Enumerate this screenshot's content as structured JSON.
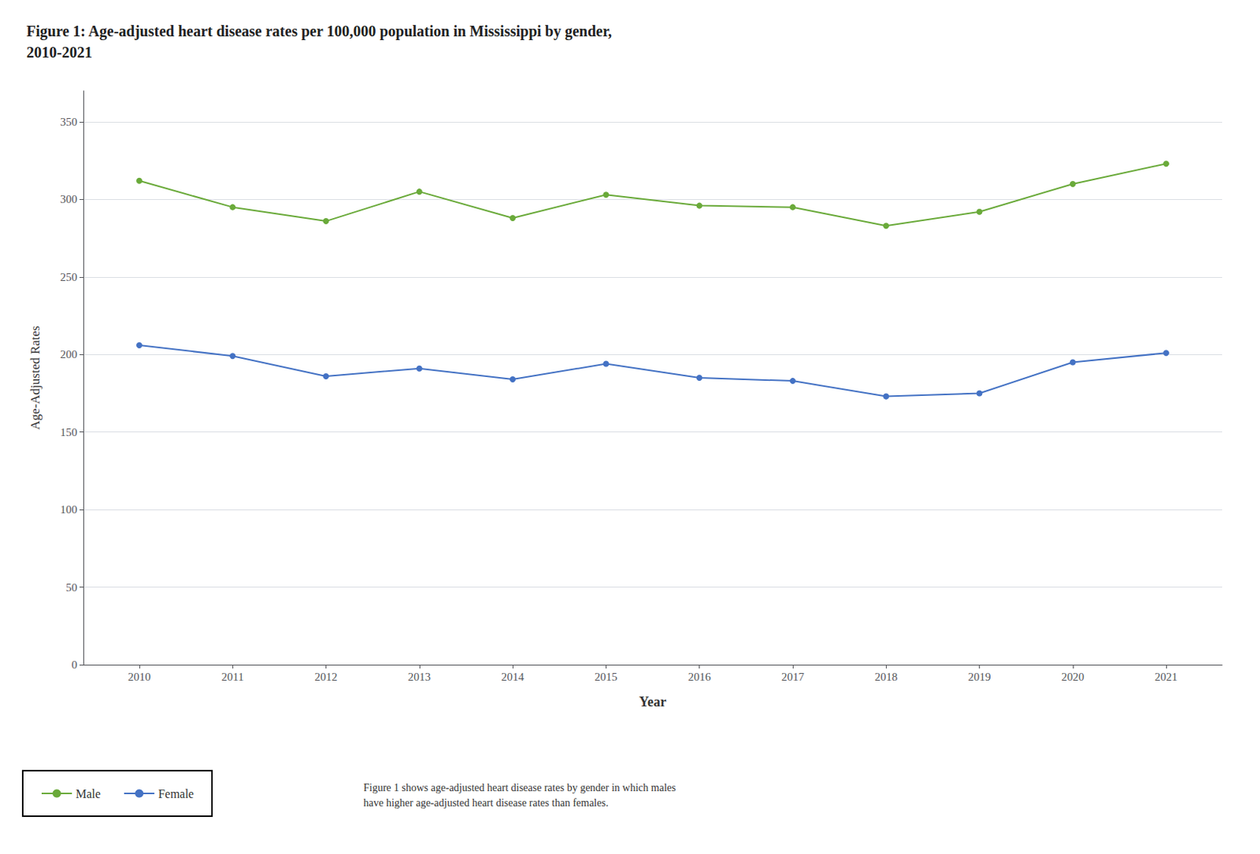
{
  "chart_data": {
    "type": "line",
    "title": "Figure 1: Age-adjusted heart disease rates per 100,000 population in Mississippi by gender,\n2010-2021",
    "x_label": "Year",
    "y_label": "Age-Adjusted Rates",
    "x": [
      2010,
      2011,
      2012,
      2013,
      2014,
      2015,
      2016,
      2017,
      2018,
      2019,
      2020,
      2021
    ],
    "series": [
      {
        "name": "Male",
        "color": "#6aaa3a",
        "values": [
          312,
          295,
          286,
          305,
          288,
          303,
          296,
          295,
          283,
          292,
          310,
          323
        ]
      },
      {
        "name": "Female",
        "color": "#4472c4",
        "values": [
          206,
          199,
          186,
          191,
          184,
          194,
          185,
          183,
          173,
          175,
          195,
          201
        ]
      }
    ],
    "xlim": [
      2009.4,
      2021.6
    ],
    "xticks": [
      2010,
      2011,
      2012,
      2013,
      2014,
      2015,
      2016,
      2017,
      2018,
      2019,
      2020,
      2021
    ],
    "ylim": [
      0,
      370
    ],
    "yticks": [
      0,
      50,
      100,
      150,
      200,
      250,
      300,
      350
    ],
    "grid": "y",
    "legend": "bottom left",
    "marker": "circle",
    "line_style": "solid",
    "annotations": [
      "Figure 1 shows age-adjusted heart disease rates by gender in which males\nhave higher age-adjusted heart disease rates than females."
    ]
  }
}
